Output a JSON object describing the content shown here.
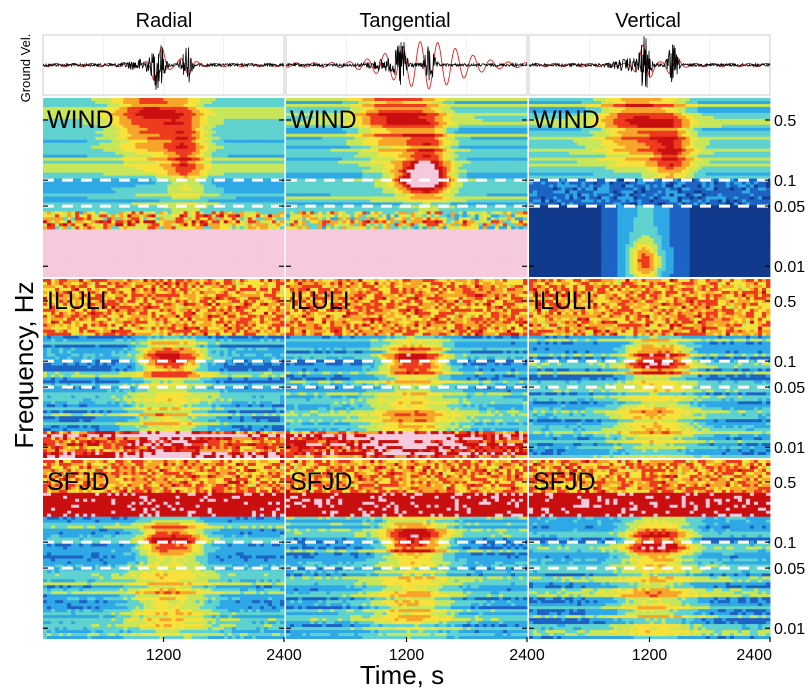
{
  "figure": {
    "columns": [
      "Radial",
      "Tangential",
      "Vertical"
    ],
    "trace_axis_label": "Ground Vel.",
    "y_axis_title": "Frequency, Hz",
    "x_axis_title": "Time, s",
    "stations": [
      "WIND",
      "ILULI",
      "SFJD"
    ]
  },
  "chart_data": {
    "type": "heatmap",
    "columns": [
      "Radial",
      "Tangential",
      "Vertical"
    ],
    "rows": [
      "WIND",
      "ILULI",
      "SFJD"
    ],
    "xlabel": "Time, s",
    "ylabel": "Frequency, Hz",
    "trace_ylabel": "Ground Vel.",
    "x_range": [
      0,
      2400
    ],
    "x_ticks": [
      1200,
      2400
    ],
    "x_tick_labels": [
      "1200",
      "2400"
    ],
    "x_first_tick_label": "2400",
    "y_scale": "log",
    "y_range": [
      0.0075,
      0.9
    ],
    "y_ticks": [
      0.5,
      0.1,
      0.05,
      0.01
    ],
    "y_tick_labels": [
      "0.5",
      "0.1",
      "0.05",
      "0.01"
    ],
    "band_lines_hz": [
      0.1,
      0.05
    ],
    "band_line_color": "#ffffff",
    "colormap": [
      "#123a8c",
      "#1d63c4",
      "#2fa8e6",
      "#5fd2cf",
      "#c8e65a",
      "#f6e23a",
      "#f7a42a",
      "#ee3b1f",
      "#c90f0f",
      "#f7c9dc"
    ],
    "trace_colors": {
      "observed": "#000000",
      "synthetic": "#e0201b"
    },
    "energy_arrival_s": {
      "main": 1150,
      "second": 1430
    }
  }
}
